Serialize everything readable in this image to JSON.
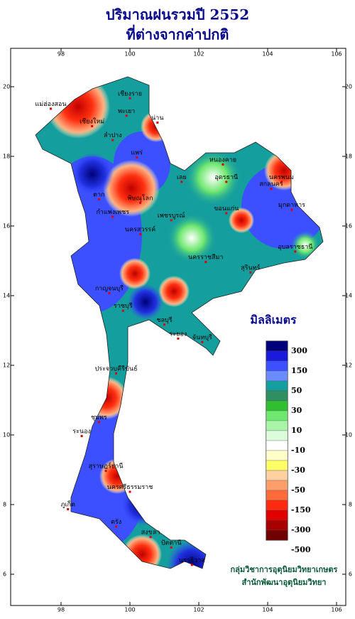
{
  "header": {
    "title": "ปริมาณฝนรวมปี  2552",
    "subtitle": "ที่ต่างจากค่าปกติ"
  },
  "map": {
    "longitudes": [
      98,
      100,
      102,
      104,
      106
    ],
    "latitudes": [
      6,
      8,
      10,
      12,
      14,
      16,
      18,
      20
    ],
    "places": [
      {
        "label": "เชียงราย",
        "lon": 100.0,
        "lat": 19.8
      },
      {
        "label": "แม่ฮ่องสอน",
        "lon": 97.7,
        "lat": 19.5
      },
      {
        "label": "เชียงใหม่",
        "lon": 98.9,
        "lat": 19.0
      },
      {
        "label": "ลำปาง",
        "lon": 99.5,
        "lat": 18.6
      },
      {
        "label": "น่าน",
        "lon": 100.8,
        "lat": 19.1
      },
      {
        "label": "พะเยา",
        "lon": 99.9,
        "lat": 19.3
      },
      {
        "label": "แพร่",
        "lon": 100.2,
        "lat": 18.1
      },
      {
        "label": "ตาก",
        "lon": 99.1,
        "lat": 16.9
      },
      {
        "label": "พิษณุโลก",
        "lon": 100.3,
        "lat": 16.8
      },
      {
        "label": "กำแพงเพชร",
        "lon": 99.5,
        "lat": 16.4
      },
      {
        "label": "หนองคาย",
        "lon": 102.7,
        "lat": 17.9
      },
      {
        "label": "เลย",
        "lon": 101.5,
        "lat": 17.4
      },
      {
        "label": "อุดรธานี",
        "lon": 102.8,
        "lat": 17.4
      },
      {
        "label": "นครพนม",
        "lon": 104.4,
        "lat": 17.4
      },
      {
        "label": "สกลนคร",
        "lon": 104.1,
        "lat": 17.2
      },
      {
        "label": "ขอนแก่น",
        "lon": 102.8,
        "lat": 16.5
      },
      {
        "label": "มุกดาหาร",
        "lon": 104.7,
        "lat": 16.6
      },
      {
        "label": "เพชรบูรณ์",
        "lon": 101.2,
        "lat": 16.3
      },
      {
        "label": "นครสวรรค์",
        "lon": 100.3,
        "lat": 15.9
      },
      {
        "label": "นครราชสีมา",
        "lon": 102.2,
        "lat": 15.1
      },
      {
        "label": "อุบลราชธานี",
        "lon": 104.8,
        "lat": 15.4
      },
      {
        "label": "สุรินทร์",
        "lon": 103.5,
        "lat": 14.8
      },
      {
        "label": "กาญจนบุรี",
        "lon": 99.4,
        "lat": 14.2
      },
      {
        "label": "ราชบุรี",
        "lon": 99.8,
        "lat": 13.7
      },
      {
        "label": "ชลบุรี",
        "lon": 101.0,
        "lat": 13.3
      },
      {
        "label": "ระยอง",
        "lon": 101.4,
        "lat": 12.9
      },
      {
        "label": "จันทบุรี",
        "lon": 102.1,
        "lat": 12.8
      },
      {
        "label": "ประจวบคีรีขันธ์",
        "lon": 99.6,
        "lat": 11.9
      },
      {
        "label": "ชุมพร",
        "lon": 99.1,
        "lat": 10.5
      },
      {
        "label": "ระนอง",
        "lon": 98.6,
        "lat": 10.1
      },
      {
        "label": "สุราษฎร์ธานี",
        "lon": 99.3,
        "lat": 9.1
      },
      {
        "label": "ภูเก็ต",
        "lon": 98.2,
        "lat": 8.0
      },
      {
        "label": "นครศรีธรรมราช",
        "lon": 100.0,
        "lat": 8.5
      },
      {
        "label": "ตรัง",
        "lon": 99.6,
        "lat": 7.5
      },
      {
        "label": "สงขลา",
        "lon": 100.6,
        "lat": 7.2
      },
      {
        "label": "ปัตตานี",
        "lon": 101.2,
        "lat": 6.9
      },
      {
        "label": "นราธิวาส",
        "lon": 101.8,
        "lat": 6.4
      }
    ]
  },
  "legend": {
    "title": "มิลลิเมตร",
    "colors": [
      "#00007a",
      "#1a1adc",
      "#3c50ff",
      "#6a8cff",
      "#159e9e",
      "#2f8f60",
      "#2fbf2f",
      "#6fe86f",
      "#a8f5a8",
      "#dcfcdc",
      "#ffffff",
      "#ffffc8",
      "#ffff66",
      "#ffd0a0",
      "#ff9e6a",
      "#ff6a3a",
      "#ff2a10",
      "#e00000",
      "#a80000",
      "#700000"
    ],
    "labels": [
      300,
      150,
      50,
      30,
      10,
      -10,
      -30,
      -50,
      -150,
      -300,
      -500
    ]
  },
  "footer": {
    "line1": "กลุ่มวิชาการอุตุนิยมวิทยาเกษตร",
    "line2": "สำนักพัฒนาอุตุนิยมวิทยา"
  }
}
